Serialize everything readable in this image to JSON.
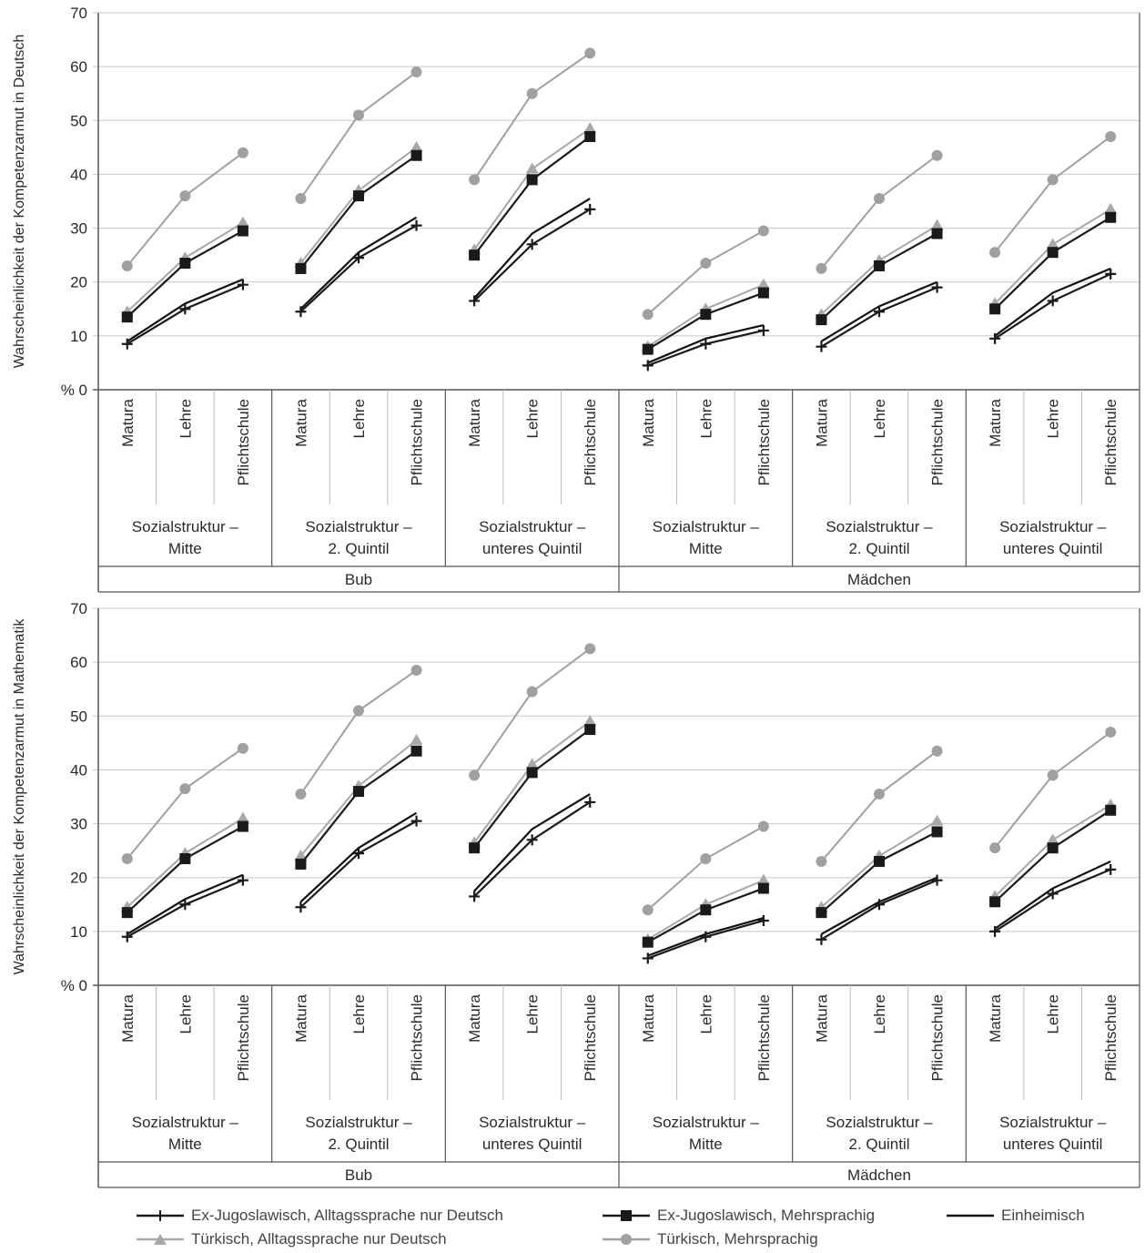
{
  "chart_data": [
    {
      "type": "line",
      "ylabel": "Wahrscheinlichkeit der Kompetenzarmut in Deutsch",
      "ylim": [
        0,
        70
      ],
      "yticks": [
        "% 0",
        "10",
        "20",
        "30",
        "40",
        "50",
        "60",
        "70"
      ],
      "grid": true,
      "categories": [
        "Matura",
        "Lehre",
        "Pflichtschule"
      ],
      "groups": [
        {
          "label": "Sozialstruktur – Mitte",
          "label_line1": "Sozialstruktur –",
          "label_line2": "Mitte",
          "gender": "Bub"
        },
        {
          "label": "Sozialstruktur – 2. Quintil",
          "label_line1": "Sozialstruktur –",
          "label_line2": "2. Quintil",
          "gender": "Bub"
        },
        {
          "label": "Sozialstruktur – unteres Quintil",
          "label_line1": "Sozialstruktur –",
          "label_line2": "unteres Quintil",
          "gender": "Bub"
        },
        {
          "label": "Sozialstruktur – Mitte",
          "label_line1": "Sozialstruktur –",
          "label_line2": "Mitte",
          "gender": "Mädchen"
        },
        {
          "label": "Sozialstruktur – 2. Quintil",
          "label_line1": "Sozialstruktur –",
          "label_line2": "2. Quintil",
          "gender": "Mädchen"
        },
        {
          "label": "Sozialstruktur – unteres Quintil",
          "label_line1": "Sozialstruktur –",
          "label_line2": "unteres Quintil",
          "gender": "Mädchen"
        }
      ],
      "genders": [
        "Bub",
        "Mädchen"
      ],
      "series": [
        {
          "key": "exyu_deutsch",
          "name": "Ex-Jugoslawisch, Alltagssprache nur Deutsch",
          "values": [
            [
              8.5,
              15,
              19.5
            ],
            [
              14.5,
              24.5,
              30.5
            ],
            [
              16.5,
              27,
              33.5
            ],
            [
              4.5,
              8.5,
              11
            ],
            [
              8,
              14.5,
              19
            ],
            [
              9.5,
              16.5,
              21.5
            ]
          ]
        },
        {
          "key": "exyu_mehr",
          "name": "Ex-Jugoslawisch, Mehrsprachig",
          "values": [
            [
              13.5,
              23.5,
              29.5
            ],
            [
              22.5,
              36,
              43.5
            ],
            [
              25,
              39,
              47
            ],
            [
              7.5,
              14,
              18
            ],
            [
              13,
              23,
              29
            ],
            [
              15,
              25.5,
              32
            ]
          ]
        },
        {
          "key": "einheimisch",
          "name": "Einheimisch",
          "values": [
            [
              9,
              16,
              20.5
            ],
            [
              15,
              25.5,
              32
            ],
            [
              17,
              29,
              35.5
            ],
            [
              5,
              9.5,
              12
            ],
            [
              9,
              15.5,
              20
            ],
            [
              10,
              18,
              22.5
            ]
          ]
        },
        {
          "key": "tuerk_deutsch",
          "name": "Türkisch, Alltagssprache nur Deutsch",
          "values": [
            [
              14.5,
              24.5,
              31
            ],
            [
              23.5,
              37,
              45
            ],
            [
              26,
              41,
              48.5
            ],
            [
              8,
              15,
              19.5
            ],
            [
              14,
              24,
              30.5
            ],
            [
              16,
              27,
              33.5
            ]
          ]
        },
        {
          "key": "tuerk_mehr",
          "name": "Türkisch, Mehrsprachig",
          "values": [
            [
              23,
              36,
              44
            ],
            [
              35.5,
              51,
              59
            ],
            [
              39,
              55,
              62.5
            ],
            [
              14,
              23.5,
              29.5
            ],
            [
              22.5,
              35.5,
              43.5
            ],
            [
              25.5,
              39,
              47
            ]
          ]
        }
      ]
    },
    {
      "type": "line",
      "ylabel": "Wahrscheinlichkeit der Kompetenzarmut in Mathematik",
      "ylim": [
        0,
        70
      ],
      "yticks": [
        "% 0",
        "10",
        "20",
        "30",
        "40",
        "50",
        "60",
        "70"
      ],
      "grid": true,
      "categories": [
        "Matura",
        "Lehre",
        "Pflichtschule"
      ],
      "groups": [
        {
          "label": "Sozialstruktur – Mitte",
          "label_line1": "Sozialstruktur –",
          "label_line2": "Mitte",
          "gender": "Bub"
        },
        {
          "label": "Sozialstruktur – 2. Quintil",
          "label_line1": "Sozialstruktur –",
          "label_line2": "2. Quintil",
          "gender": "Bub"
        },
        {
          "label": "Sozialstruktur – unteres Quintil",
          "label_line1": "Sozialstruktur –",
          "label_line2": "unteres Quintil",
          "gender": "Bub"
        },
        {
          "label": "Sozialstruktur – Mitte",
          "label_line1": "Sozialstruktur –",
          "label_line2": "Mitte",
          "gender": "Mädchen"
        },
        {
          "label": "Sozialstruktur – 2. Quintil",
          "label_line1": "Sozialstruktur –",
          "label_line2": "2. Quintil",
          "gender": "Mädchen"
        },
        {
          "label": "Sozialstruktur – unteres Quintil",
          "label_line1": "Sozialstruktur –",
          "label_line2": "unteres Quintil",
          "gender": "Mädchen"
        }
      ],
      "genders": [
        "Bub",
        "Mädchen"
      ],
      "series": [
        {
          "key": "exyu_deutsch",
          "name": "Ex-Jugoslawisch, Alltagssprache nur Deutsch",
          "values": [
            [
              9,
              15,
              19.5
            ],
            [
              14.5,
              24.5,
              30.5
            ],
            [
              16.5,
              27,
              34
            ],
            [
              5,
              9,
              12
            ],
            [
              8.5,
              15,
              19.5
            ],
            [
              10,
              17,
              21.5
            ]
          ]
        },
        {
          "key": "exyu_mehr",
          "name": "Ex-Jugoslawisch, Mehrsprachig",
          "values": [
            [
              13.5,
              23.5,
              29.5
            ],
            [
              22.5,
              36,
              43.5
            ],
            [
              25.5,
              39.5,
              47.5
            ],
            [
              8,
              14,
              18
            ],
            [
              13.5,
              23,
              28.5
            ],
            [
              15.5,
              25.5,
              32.5
            ]
          ]
        },
        {
          "key": "einheimisch",
          "name": "Einheimisch",
          "values": [
            [
              9.5,
              16,
              20.5
            ],
            [
              15.5,
              25.5,
              32
            ],
            [
              17.5,
              29,
              35.5
            ],
            [
              5.5,
              9.5,
              12.5
            ],
            [
              9.5,
              15.5,
              20
            ],
            [
              10.5,
              18,
              23
            ]
          ]
        },
        {
          "key": "tuerk_deutsch",
          "name": "Türkisch, Alltagssprache nur Deutsch",
          "values": [
            [
              14.5,
              24.5,
              31
            ],
            [
              24,
              37,
              45.5
            ],
            [
              26.5,
              41,
              49
            ],
            [
              8.5,
              15,
              19.5
            ],
            [
              14.5,
              24,
              30.5
            ],
            [
              16.5,
              27,
              33.5
            ]
          ]
        },
        {
          "key": "tuerk_mehr",
          "name": "Türkisch, Mehrsprachig",
          "values": [
            [
              23.5,
              36.5,
              44
            ],
            [
              35.5,
              51,
              58.5
            ],
            [
              39,
              54.5,
              62.5
            ],
            [
              14,
              23.5,
              29.5
            ],
            [
              23,
              35.5,
              43.5
            ],
            [
              25.5,
              39,
              47
            ]
          ]
        }
      ]
    }
  ],
  "legend": {
    "items": [
      {
        "key": "exyu_deutsch",
        "label": "Ex-Jugoslawisch, Alltagssprache nur Deutsch"
      },
      {
        "key": "exyu_mehr",
        "label": "Ex-Jugoslawisch, Mehrsprachig"
      },
      {
        "key": "einheimisch",
        "label": "Einheimisch"
      },
      {
        "key": "tuerk_deutsch",
        "label": "Türkisch, Alltagssprache nur Deutsch"
      },
      {
        "key": "tuerk_mehr",
        "label": "Türkisch, Mehrsprachig"
      }
    ]
  },
  "styles": {
    "exyu_deutsch": {
      "color": "#1a1a1a",
      "marker": "plus"
    },
    "exyu_mehr": {
      "color": "#1a1a1a",
      "marker": "square"
    },
    "einheimisch": {
      "color": "#111111",
      "marker": "none"
    },
    "tuerk_deutsch": {
      "color": "#a8a8a8",
      "marker": "triangle"
    },
    "tuerk_mehr": {
      "color": "#a0a0a0",
      "marker": "circle"
    },
    "grid_color": "#c8c8c8",
    "axis_color": "#555555"
  }
}
